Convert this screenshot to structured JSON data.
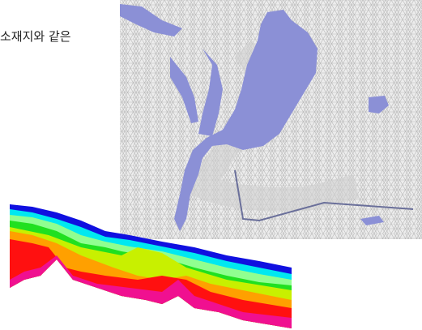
{
  "text": "소재지와 같은"
}
